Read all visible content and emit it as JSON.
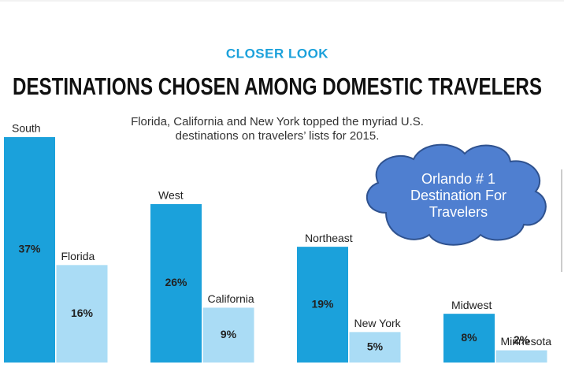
{
  "chart_data": {
    "type": "bar",
    "kicker": "CLOSER LOOK",
    "title": "DESTINATIONS CHOSEN AMONG DOMESTIC TRAVELERS",
    "subtitle": [
      "Florida, California and New York topped the myriad U.S.",
      "destinations on travelers’ lists for 2015."
    ],
    "callout": [
      "Orlando # 1",
      "Destination For",
      "Travelers"
    ],
    "series": [
      {
        "color": "#1ba1db",
        "categories": [
          "South",
          "West",
          "Northeast",
          "Midwest"
        ],
        "values": [
          37,
          26,
          19,
          8
        ],
        "value_labels": [
          "37%",
          "26%",
          "19%",
          "8%"
        ]
      },
      {
        "color": "#aadcf5",
        "categories": [
          "Florida",
          "California",
          "New York",
          "Minnesota"
        ],
        "values": [
          16,
          9,
          5,
          2
        ],
        "value_labels": [
          "16%",
          "9%",
          "5%",
          "2%"
        ]
      }
    ]
  }
}
